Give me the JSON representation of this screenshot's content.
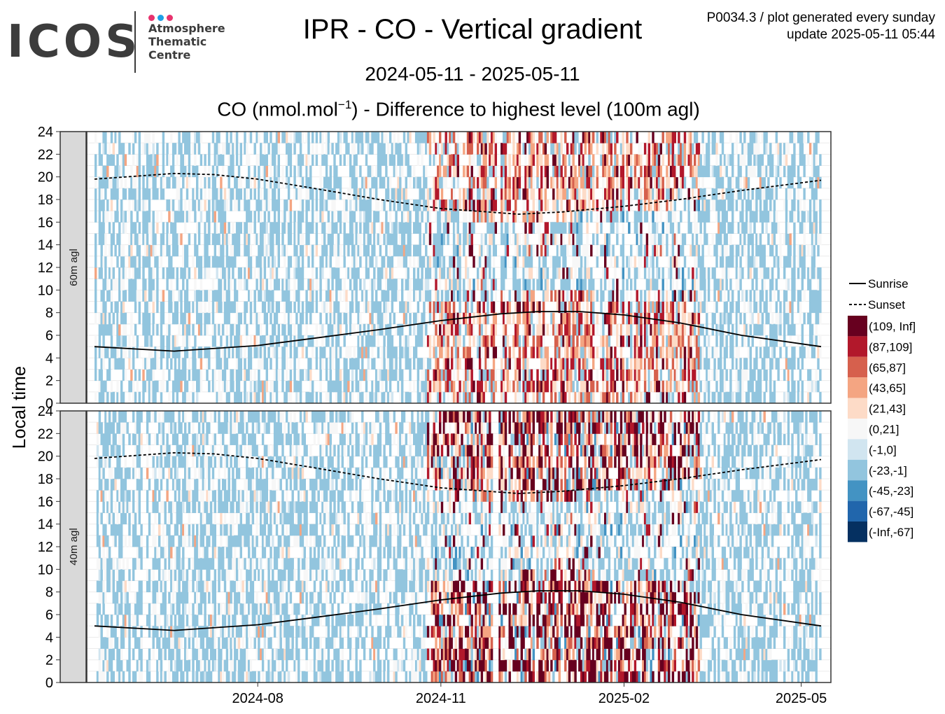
{
  "logo": {
    "brand": "ICOS",
    "line1": "Atmosphere",
    "line2": "Thematic",
    "line3": "Centre",
    "dot_colors": [
      "#e8336e",
      "#1ea0e6",
      "#e8336e"
    ]
  },
  "header": {
    "title": "IPR - CO - Vertical gradient",
    "date_range": "2024-05-11 - 2025-05-11",
    "subtitle_pre": "CO (nmol.mol",
    "subtitle_sup": "−1",
    "subtitle_post": ") - Difference to highest level (100m agl)",
    "meta_line1": "P0034.3 / plot generated every sunday",
    "meta_line2": "update  2025-05-11 05:44"
  },
  "chart_data": {
    "type": "heatmap",
    "ylabel": "Local time",
    "x_start": "2024-05-11",
    "x_end": "2025-05-11",
    "x_ticks": [
      "2024-08",
      "2024-11",
      "2025-02",
      "2025-05"
    ],
    "y_ticks": [
      "0",
      "2",
      "4",
      "6",
      "8",
      "10",
      "12",
      "14",
      "16",
      "18",
      "20",
      "22",
      "24"
    ],
    "ylim": [
      0,
      24
    ],
    "panels": [
      {
        "label": "60m agl"
      },
      {
        "label": "40m agl"
      }
    ],
    "lines": [
      {
        "name": "Sunrise",
        "style": "solid",
        "points": [
          [
            "2024-05-11",
            5.0
          ],
          [
            "2024-06-20",
            4.6
          ],
          [
            "2024-08-01",
            5.1
          ],
          [
            "2024-09-01",
            5.8
          ],
          [
            "2024-10-01",
            6.5
          ],
          [
            "2024-11-01",
            7.3
          ],
          [
            "2024-12-01",
            7.9
          ],
          [
            "2024-12-20",
            8.1
          ],
          [
            "2025-01-10",
            8.1
          ],
          [
            "2025-02-01",
            7.8
          ],
          [
            "2025-03-01",
            7.1
          ],
          [
            "2025-04-01",
            6.0
          ],
          [
            "2025-05-11",
            5.0
          ]
        ]
      },
      {
        "name": "Sunset",
        "style": "dashed",
        "points": [
          [
            "2024-05-11",
            19.8
          ],
          [
            "2024-06-20",
            20.3
          ],
          [
            "2024-07-10",
            20.2
          ],
          [
            "2024-08-01",
            19.8
          ],
          [
            "2024-09-01",
            18.9
          ],
          [
            "2024-10-01",
            18.0
          ],
          [
            "2024-11-01",
            17.2
          ],
          [
            "2024-12-10",
            16.7
          ],
          [
            "2025-01-01",
            16.9
          ],
          [
            "2025-02-01",
            17.4
          ],
          [
            "2025-03-01",
            18.0
          ],
          [
            "2025-04-01",
            18.8
          ],
          [
            "2025-05-11",
            19.7
          ]
        ]
      }
    ],
    "color_bins": [
      {
        "label": "(109, Inf]",
        "color": "#67001f"
      },
      {
        "label": "(87,109]",
        "color": "#b2182b"
      },
      {
        "label": "(65,87]",
        "color": "#d6604d"
      },
      {
        "label": "(43,65]",
        "color": "#f4a582"
      },
      {
        "label": "(21,43]",
        "color": "#fddbc7"
      },
      {
        "label": "(0,21]",
        "color": "#f7f7f7"
      },
      {
        "label": "(-1,0]",
        "color": "#d1e5f0"
      },
      {
        "label": "(-23,-1]",
        "color": "#92c5de"
      },
      {
        "label": "(-45,-23]",
        "color": "#4393c3"
      },
      {
        "label": "(-67,-45]",
        "color": "#2166ac"
      },
      {
        "label": "(-Inf,-67]",
        "color": "#053061"
      }
    ]
  }
}
